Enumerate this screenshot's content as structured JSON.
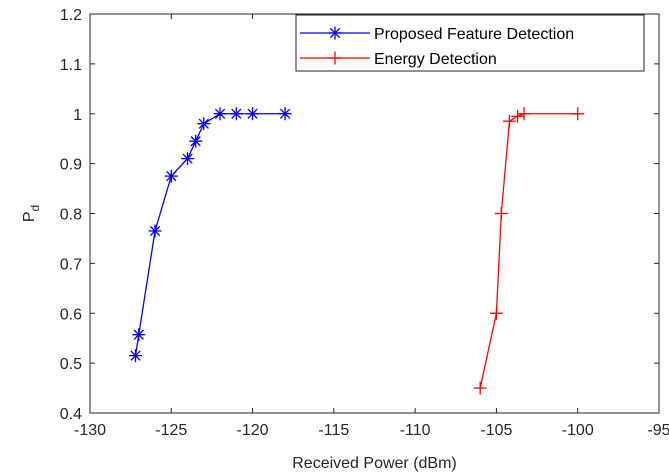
{
  "chart_data": {
    "type": "line",
    "xlabel": "Received Power (dBm)",
    "ylabel": {
      "main": "P",
      "subscript": "d"
    },
    "xlim": [
      -130,
      -95
    ],
    "ylim": [
      0.4,
      1.2
    ],
    "xticks": [
      -130,
      -125,
      -120,
      -115,
      -110,
      -105,
      -100,
      -95
    ],
    "yticks": [
      0.4,
      0.5,
      0.6,
      0.7,
      0.8,
      0.9,
      1,
      1.1,
      1.2
    ],
    "xtick_labels": [
      "-130",
      "-125",
      "-120",
      "-115",
      "-110",
      "-105",
      "-100",
      "-95"
    ],
    "ytick_labels": [
      "0.4",
      "0.5",
      "0.6",
      "0.7",
      "0.8",
      "0.9",
      "1",
      "1.1",
      "1.2"
    ],
    "grid": false,
    "box": true,
    "legend_position": "top-right",
    "series": [
      {
        "name": "Proposed Feature Detection",
        "color": "#0000ff",
        "marker": "asterisk",
        "x": [
          -127.2,
          -127,
          -126,
          -125,
          -124,
          -123.5,
          -123,
          -122,
          -121,
          -120,
          -118
        ],
        "y": [
          0.515,
          0.557,
          0.765,
          0.875,
          0.91,
          0.945,
          0.98,
          1.0,
          1.0,
          1.0,
          1.0
        ]
      },
      {
        "name": "Energy Detection",
        "color": "#ff0000",
        "marker": "plus",
        "x": [
          -106,
          -105,
          -104.7,
          -104.2,
          -103.7,
          -103.3,
          -100
        ],
        "y": [
          0.45,
          0.6,
          0.8,
          0.985,
          0.995,
          1.0,
          1.0
        ]
      }
    ]
  }
}
